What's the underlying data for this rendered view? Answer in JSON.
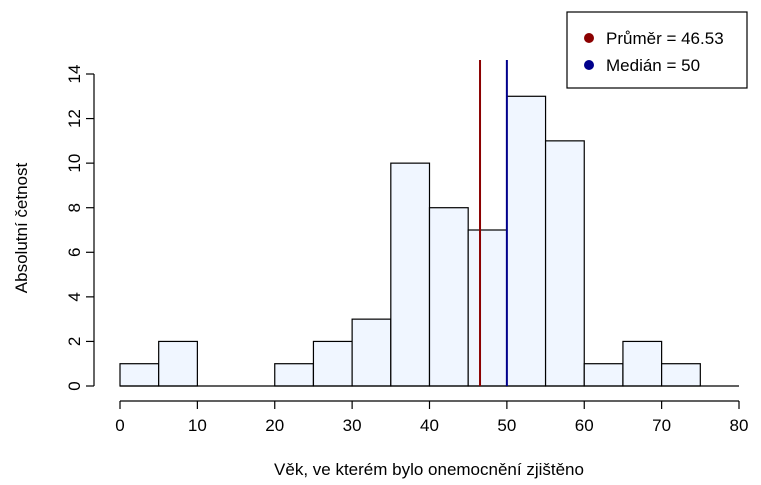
{
  "chart_data": {
    "type": "bar",
    "subtype": "histogram",
    "bins": [
      {
        "from": 0,
        "to": 5,
        "count": 1
      },
      {
        "from": 5,
        "to": 10,
        "count": 2
      },
      {
        "from": 10,
        "to": 15,
        "count": 0
      },
      {
        "from": 15,
        "to": 20,
        "count": 0
      },
      {
        "from": 20,
        "to": 25,
        "count": 1
      },
      {
        "from": 25,
        "to": 30,
        "count": 2
      },
      {
        "from": 30,
        "to": 35,
        "count": 3
      },
      {
        "from": 35,
        "to": 40,
        "count": 10
      },
      {
        "from": 40,
        "to": 45,
        "count": 8
      },
      {
        "from": 45,
        "to": 50,
        "count": 7
      },
      {
        "from": 50,
        "to": 55,
        "count": 13
      },
      {
        "from": 55,
        "to": 60,
        "count": 11
      },
      {
        "from": 60,
        "to": 65,
        "count": 1
      },
      {
        "from": 65,
        "to": 70,
        "count": 2
      },
      {
        "from": 70,
        "to": 75,
        "count": 1
      }
    ],
    "xlabel": "Věk, ve kterém bylo onemocnění zjištěno",
    "ylabel": "Absolutní četnost",
    "xlim": [
      0,
      80
    ],
    "ylim": [
      0,
      14
    ],
    "x_ticks": [
      0,
      10,
      20,
      30,
      40,
      50,
      60,
      70,
      80
    ],
    "y_ticks": [
      0,
      2,
      4,
      6,
      8,
      10,
      12,
      14
    ],
    "grid": false,
    "bar_fill": "#f0f6ff",
    "bar_stroke": "#000000",
    "reference_lines": [
      {
        "label": "Průměr = 46.53",
        "value": 46.53,
        "color": "#8b0000"
      },
      {
        "label": "Medián = 50",
        "value": 50,
        "color": "#00008b"
      }
    ],
    "legend_position": "top-right"
  }
}
